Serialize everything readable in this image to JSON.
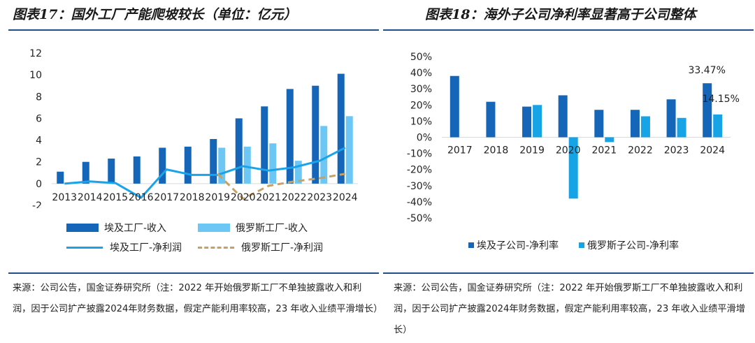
{
  "left": {
    "title": "图表17：国外工厂产能爬坡较长（单位：亿元）",
    "source": "来源：公司公告，国金证券研究所（注：2022 年开始俄罗斯工厂不单独披露收入和利润，因于公司扩产披露2024年财务数据，假定产能利用率较高，23 年收入业绩平滑增长）"
  },
  "right": {
    "title": "图表18：海外子公司净利率显著高于公司整体",
    "source": "来源：公司公告，国金证券研究所（注：2022 年开始俄罗斯工厂不单独披露收入和利润，因于公司扩产披露2024年财务数据，假定产能利用率较高，23 年收入业绩平滑增长）"
  },
  "chart_data": [
    {
      "type": "bar",
      "title": "国外工厂产能爬坡较长（单位：亿元）",
      "categories": [
        "2013",
        "2014",
        "2015",
        "2016",
        "2017",
        "2018",
        "2019",
        "2020",
        "2021",
        "2022",
        "2023",
        "2024"
      ],
      "ylim": [
        -2,
        12
      ],
      "yticks": [
        "-2",
        "0",
        "2",
        "4",
        "6",
        "8",
        "10",
        "12"
      ],
      "series": [
        {
          "name": "埃及工厂-收入",
          "kind": "bar",
          "color": "#1565b8",
          "values": [
            1.1,
            2.0,
            2.3,
            2.5,
            3.3,
            3.4,
            4.1,
            6.0,
            7.1,
            8.7,
            9.0,
            10.1
          ]
        },
        {
          "name": "俄罗斯工厂-收入",
          "kind": "bar",
          "color": "#6cc7f5",
          "values": [
            null,
            null,
            null,
            null,
            null,
            null,
            3.3,
            3.4,
            3.7,
            2.1,
            5.3,
            6.2
          ]
        },
        {
          "name": "埃及工厂-净利润",
          "kind": "line",
          "color": "#1aa3e8",
          "values": [
            0.0,
            0.2,
            0.05,
            -1.3,
            1.3,
            0.8,
            0.8,
            1.6,
            1.2,
            1.5,
            2.1,
            3.3
          ]
        },
        {
          "name": "俄罗斯工厂-净利润",
          "kind": "dash",
          "color": "#c8a064",
          "values": [
            null,
            null,
            null,
            null,
            null,
            null,
            0.9,
            -1.4,
            -0.2,
            0.2,
            0.5,
            0.9
          ]
        }
      ]
    },
    {
      "type": "bar",
      "title": "海外子公司净利率显著高于公司整体",
      "categories": [
        "2017",
        "2018",
        "2019",
        "2020",
        "2021",
        "2022",
        "2023",
        "2024"
      ],
      "ylim": [
        -50,
        50
      ],
      "yticks": [
        "-50%",
        "-40%",
        "-30%",
        "-20%",
        "-10%",
        "0%",
        "10%",
        "20%",
        "30%",
        "40%",
        "50%"
      ],
      "series": [
        {
          "name": "埃及子公司-净利率",
          "kind": "bar",
          "color": "#1565b8",
          "values": [
            38,
            22,
            19,
            26,
            17,
            17,
            23.5,
            33.47
          ]
        },
        {
          "name": "俄罗斯子公司-净利率",
          "kind": "bar",
          "color": "#16a4e6",
          "values": [
            null,
            null,
            20,
            -38,
            -3,
            13,
            12,
            14.15
          ]
        }
      ],
      "data_labels": [
        "33.47%",
        "14.15%"
      ]
    }
  ]
}
